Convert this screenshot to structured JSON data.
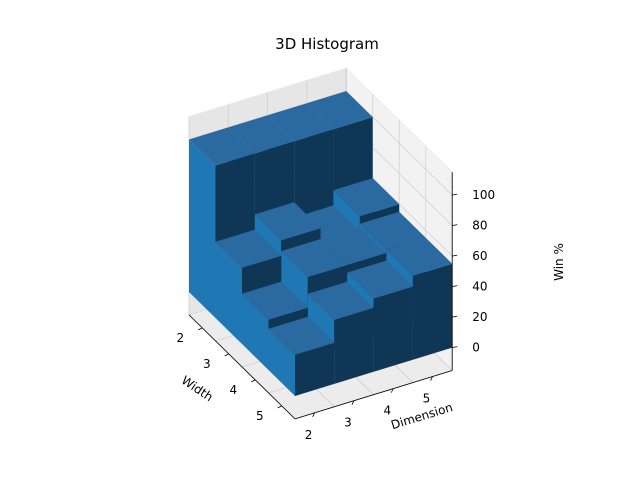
{
  "chart_data": {
    "type": "bar3d",
    "title": "3D Histogram",
    "xlabel": "Width",
    "ylabel": "Dimension",
    "zlabel": "Win %",
    "x_ticks": [
      2,
      3,
      4,
      5
    ],
    "y_ticks": [
      2,
      3,
      4,
      5
    ],
    "z_ticks": [
      0,
      20,
      40,
      60,
      80,
      100
    ],
    "zlim": [
      0,
      100
    ],
    "grid": true,
    "bar_color": "#1f77b4",
    "bars": [
      {
        "width": 2,
        "dimension": 2,
        "value": 100
      },
      {
        "width": 2,
        "dimension": 3,
        "value": 100
      },
      {
        "width": 2,
        "dimension": 4,
        "value": 100
      },
      {
        "width": 2,
        "dimension": 5,
        "value": 100
      },
      {
        "width": 3,
        "dimension": 2,
        "value": 50
      },
      {
        "width": 3,
        "dimension": 3,
        "value": 60
      },
      {
        "width": 3,
        "dimension": 4,
        "value": 50
      },
      {
        "width": 3,
        "dimension": 5,
        "value": 60
      },
      {
        "width": 4,
        "dimension": 2,
        "value": 33
      },
      {
        "width": 4,
        "dimension": 3,
        "value": 53
      },
      {
        "width": 4,
        "dimension": 4,
        "value": 53
      },
      {
        "width": 4,
        "dimension": 5,
        "value": 55
      },
      {
        "width": 5,
        "dimension": 2,
        "value": 27
      },
      {
        "width": 5,
        "dimension": 3,
        "value": 42
      },
      {
        "width": 5,
        "dimension": 4,
        "value": 48
      },
      {
        "width": 5,
        "dimension": 5,
        "value": 55
      }
    ]
  }
}
